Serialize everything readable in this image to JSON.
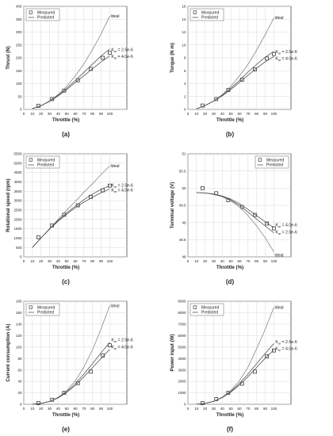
{
  "legend": {
    "measured": "Measured",
    "predicted": "Predicted"
  },
  "curve_labels": {
    "ideal": "Ideal",
    "kar_a": "K",
    "kar_sub": "ar",
    "kar_a_value": " = 2.5e-6",
    "kar_b_value": " = 4.0e-6"
  },
  "chart_data": [
    {
      "type": "line",
      "id": "a",
      "panel_label": "(a)",
      "xlabel": "Throttle (%)",
      "ylabel": "Thrust (N)",
      "xlim": [
        0,
        120
      ],
      "ylim": [
        0,
        400
      ],
      "xticks": [
        0,
        10,
        20,
        30,
        40,
        50,
        60,
        70,
        80,
        90,
        100
      ],
      "yticks": [
        0,
        50,
        100,
        150,
        200,
        250,
        300,
        350,
        400
      ],
      "grid": true,
      "legend_position": "top-left",
      "series": [
        {
          "role": "measured",
          "x": [
            17,
            33,
            47,
            63,
            78,
            92,
            100
          ],
          "y": [
            14,
            40,
            73,
            113,
            157,
            200,
            220
          ]
        },
        {
          "role": "ideal",
          "x": [
            10,
            20,
            30,
            40,
            50,
            60,
            70,
            80,
            90,
            100
          ],
          "y": [
            3,
            14,
            33,
            58,
            90,
            130,
            177,
            232,
            293,
            362
          ]
        },
        {
          "role": "kar-2.5e-6",
          "x": [
            10,
            20,
            30,
            40,
            50,
            60,
            70,
            80,
            90,
            100
          ],
          "y": [
            3,
            14,
            32,
            55,
            82,
            112,
            144,
            176,
            207,
            235
          ]
        },
        {
          "role": "kar-4.0e-6",
          "x": [
            10,
            20,
            30,
            40,
            50,
            60,
            70,
            80,
            90,
            100
          ],
          "y": [
            3,
            14,
            31,
            52,
            77,
            104,
            131,
            158,
            184,
            208
          ]
        }
      ],
      "annotations": [
        {
          "text": "Ideal",
          "x": 100,
          "y": 362,
          "role": "ideal"
        },
        {
          "text": "K_ar = 2.5e-6",
          "x": 101,
          "y": 231
        },
        {
          "text": "K_ar = 4.0e-6",
          "x": 101,
          "y": 205
        }
      ]
    },
    {
      "type": "line",
      "id": "b",
      "panel_label": "(b)",
      "xlabel": "Throttle (%)",
      "ylabel": "Torque (N m)",
      "xlim": [
        0,
        120
      ],
      "ylim": [
        0,
        16
      ],
      "xticks": [
        0,
        10,
        20,
        30,
        40,
        50,
        60,
        70,
        80,
        90,
        100
      ],
      "yticks": [
        0,
        2,
        4,
        6,
        8,
        10,
        12,
        14,
        16
      ],
      "grid": true,
      "legend_position": "top-left",
      "series": [
        {
          "role": "measured",
          "x": [
            17,
            33,
            47,
            63,
            78,
            92,
            100
          ],
          "y": [
            0.6,
            1.6,
            3.0,
            4.6,
            6.2,
            7.9,
            8.6
          ]
        },
        {
          "role": "ideal",
          "x": [
            10,
            20,
            30,
            40,
            50,
            60,
            70,
            80,
            90,
            100
          ],
          "y": [
            0.1,
            0.6,
            1.3,
            2.3,
            3.6,
            5.2,
            7.0,
            9.2,
            11.6,
            14.2
          ]
        },
        {
          "role": "kar-2.5e-6",
          "x": [
            10,
            20,
            30,
            40,
            50,
            60,
            70,
            80,
            90,
            100
          ],
          "y": [
            0.1,
            0.6,
            1.3,
            2.2,
            3.3,
            4.5,
            5.8,
            7.0,
            8.1,
            9.0
          ]
        },
        {
          "role": "kar-4.0e-6",
          "x": [
            10,
            20,
            30,
            40,
            50,
            60,
            70,
            80,
            90,
            100
          ],
          "y": [
            0.1,
            0.6,
            1.3,
            2.1,
            3.1,
            4.2,
            5.3,
            6.4,
            7.4,
            8.2
          ]
        }
      ],
      "annotations": [
        {
          "text": "Ideal",
          "x": 100,
          "y": 14.2,
          "role": "ideal"
        },
        {
          "text": "K_ar = 2.5e-6",
          "x": 101,
          "y": 8.9
        },
        {
          "text": "K_ar = 4.0e-6",
          "x": 101,
          "y": 7.9
        }
      ]
    },
    {
      "type": "line",
      "id": "c",
      "panel_label": "(c)",
      "xlabel": "Throttle (%)",
      "ylabel": "Rotational speed (rpm)",
      "xlim": [
        0,
        120
      ],
      "ylim": [
        0,
        5500
      ],
      "xticks": [
        0,
        10,
        20,
        30,
        40,
        50,
        60,
        70,
        80,
        90,
        100
      ],
      "yticks": [
        0,
        500,
        1000,
        1500,
        2000,
        2500,
        3000,
        3500,
        4000,
        4500,
        5000,
        5500
      ],
      "grid": true,
      "legend_position": "top-left",
      "series": [
        {
          "role": "measured",
          "x": [
            17,
            33,
            47,
            63,
            78,
            92,
            100
          ],
          "y": [
            1050,
            1680,
            2250,
            2750,
            3200,
            3550,
            3800
          ]
        },
        {
          "role": "ideal",
          "x": [
            10,
            20,
            30,
            40,
            50,
            60,
            70,
            80,
            90,
            100
          ],
          "y": [
            500,
            1000,
            1500,
            2000,
            2500,
            2950,
            3450,
            3900,
            4400,
            4850
          ]
        },
        {
          "role": "kar-2.5e-6",
          "x": [
            10,
            20,
            30,
            40,
            50,
            60,
            70,
            80,
            90,
            100
          ],
          "y": [
            500,
            1000,
            1500,
            1950,
            2350,
            2700,
            3050,
            3350,
            3600,
            3800
          ]
        },
        {
          "role": "kar-4.0e-6",
          "x": [
            10,
            20,
            30,
            40,
            50,
            60,
            70,
            80,
            90,
            100
          ],
          "y": [
            500,
            1000,
            1480,
            1900,
            2280,
            2620,
            2920,
            3180,
            3420,
            3620
          ]
        }
      ],
      "annotations": [
        {
          "text": "Ideal",
          "x": 100,
          "y": 4850,
          "role": "ideal"
        },
        {
          "text": "K_ar = 2.5e-6",
          "x": 101,
          "y": 3800
        },
        {
          "text": "K_ar = 4.0e-6",
          "x": 101,
          "y": 3550
        }
      ]
    },
    {
      "type": "line",
      "id": "d",
      "panel_label": "(d)",
      "xlabel": "Throttle (%)",
      "ylabel": "Terminal voltage (V)",
      "xlim": [
        0,
        120
      ],
      "ylim": [
        48,
        51
      ],
      "xticks": [
        0,
        10,
        20,
        30,
        40,
        50,
        60,
        70,
        80,
        90,
        100
      ],
      "yticks": [
        48,
        48.5,
        49,
        49.5,
        50,
        50.5,
        51
      ],
      "grid": true,
      "legend_position": "top-right",
      "series": [
        {
          "role": "measured",
          "x": [
            17,
            33,
            47,
            63,
            78,
            92,
            100
          ],
          "y": [
            50.0,
            49.85,
            49.65,
            49.45,
            49.22,
            48.97,
            48.83
          ]
        },
        {
          "role": "ideal",
          "x": [
            10,
            20,
            30,
            40,
            50,
            60,
            70,
            80,
            90,
            100
          ],
          "y": [
            49.87,
            49.86,
            49.82,
            49.75,
            49.63,
            49.45,
            49.2,
            48.9,
            48.55,
            48.15
          ]
        },
        {
          "role": "kar-2.5e-6",
          "x": [
            10,
            20,
            30,
            40,
            50,
            60,
            70,
            80,
            90,
            100
          ],
          "y": [
            49.87,
            49.86,
            49.82,
            49.76,
            49.65,
            49.5,
            49.3,
            49.1,
            48.9,
            48.7
          ]
        },
        {
          "role": "kar-4.0e-6",
          "x": [
            10,
            20,
            30,
            40,
            50,
            60,
            70,
            80,
            90,
            100
          ],
          "y": [
            49.87,
            49.86,
            49.83,
            49.77,
            49.68,
            49.55,
            49.38,
            49.2,
            49.02,
            48.85
          ]
        }
      ],
      "annotations": [
        {
          "text": "Ideal",
          "x": 100,
          "y": 48.05,
          "role": "ideal"
        },
        {
          "text": "K_ar = 4.0e-6",
          "x": 101,
          "y": 48.92
        },
        {
          "text": "K_ar = 2.5e-6",
          "x": 101,
          "y": 48.72
        }
      ]
    },
    {
      "type": "line",
      "id": "e",
      "panel_label": "(e)",
      "xlabel": "Throttle (%)",
      "ylabel": "Current consumption (A)",
      "xlim": [
        0,
        120
      ],
      "ylim": [
        0,
        180
      ],
      "xticks": [
        0,
        10,
        20,
        30,
        40,
        50,
        60,
        70,
        80,
        90,
        100
      ],
      "yticks": [
        0,
        20,
        40,
        60,
        80,
        100,
        120,
        140,
        160,
        180
      ],
      "grid": true,
      "legend_position": "top-left",
      "series": [
        {
          "role": "measured",
          "x": [
            17,
            33,
            47,
            63,
            78,
            92,
            100
          ],
          "y": [
            2,
            8,
            20,
            37,
            57,
            85,
            103
          ]
        },
        {
          "role": "ideal",
          "x": [
            10,
            20,
            30,
            40,
            50,
            60,
            70,
            80,
            90,
            100
          ],
          "y": [
            0.2,
            1.5,
            5,
            12,
            24,
            41,
            65,
            95,
            132,
            172
          ]
        },
        {
          "role": "kar-2.5e-6",
          "x": [
            10,
            20,
            30,
            40,
            50,
            60,
            70,
            80,
            90,
            100
          ],
          "y": [
            0.2,
            1.5,
            5,
            12,
            22,
            36,
            53,
            71,
            90,
            108
          ]
        },
        {
          "role": "kar-4.0e-6",
          "x": [
            10,
            20,
            30,
            40,
            50,
            60,
            70,
            80,
            90,
            100
          ],
          "y": [
            0.2,
            1.5,
            5,
            11,
            21,
            33,
            48,
            64,
            80,
            96
          ]
        }
      ],
      "annotations": [
        {
          "text": "Ideal",
          "x": 100,
          "y": 172,
          "role": "ideal"
        },
        {
          "text": "K_ar = 2.5e-6",
          "x": 101,
          "y": 112
        },
        {
          "text": "K_ar = 4.0e-6",
          "x": 101,
          "y": 100
        }
      ]
    },
    {
      "type": "line",
      "id": "f",
      "panel_label": "(f)",
      "xlabel": "Throttle (%)",
      "ylabel": "Power input (W)",
      "xlim": [
        0,
        120
      ],
      "ylim": [
        0,
        9000
      ],
      "xticks": [
        0,
        10,
        20,
        30,
        40,
        50,
        60,
        70,
        80,
        90,
        100
      ],
      "yticks": [
        0,
        1000,
        2000,
        3000,
        4000,
        5000,
        6000,
        7000,
        8000,
        9000
      ],
      "grid": true,
      "legend_position": "top-left",
      "series": [
        {
          "role": "measured",
          "x": [
            17,
            33,
            47,
            63,
            78,
            92,
            100
          ],
          "y": [
            100,
            450,
            1000,
            1800,
            2850,
            4200,
            4700
          ]
        },
        {
          "role": "ideal",
          "x": [
            10,
            20,
            30,
            40,
            50,
            60,
            70,
            80,
            90,
            100
          ],
          "y": [
            10,
            80,
            260,
            620,
            1200,
            2050,
            3250,
            4850,
            6550,
            8450
          ]
        },
        {
          "role": "kar-2.5e-6",
          "x": [
            10,
            20,
            30,
            40,
            50,
            60,
            70,
            80,
            90,
            100
          ],
          "y": [
            10,
            80,
            260,
            600,
            1120,
            1820,
            2650,
            3550,
            4450,
            5300
          ]
        },
        {
          "role": "kar-4.0e-6",
          "x": [
            10,
            20,
            30,
            40,
            50,
            60,
            70,
            80,
            90,
            100
          ],
          "y": [
            10,
            80,
            255,
            580,
            1060,
            1680,
            2420,
            3220,
            4020,
            4750
          ]
        }
      ],
      "annotations": [
        {
          "text": "Ideal",
          "x": 100,
          "y": 8450,
          "role": "ideal"
        },
        {
          "text": "K_ar = 2.5e-6",
          "x": 101,
          "y": 5450
        },
        {
          "text": "K_ar = 4.0e-6",
          "x": 101,
          "y": 4850
        }
      ]
    }
  ]
}
